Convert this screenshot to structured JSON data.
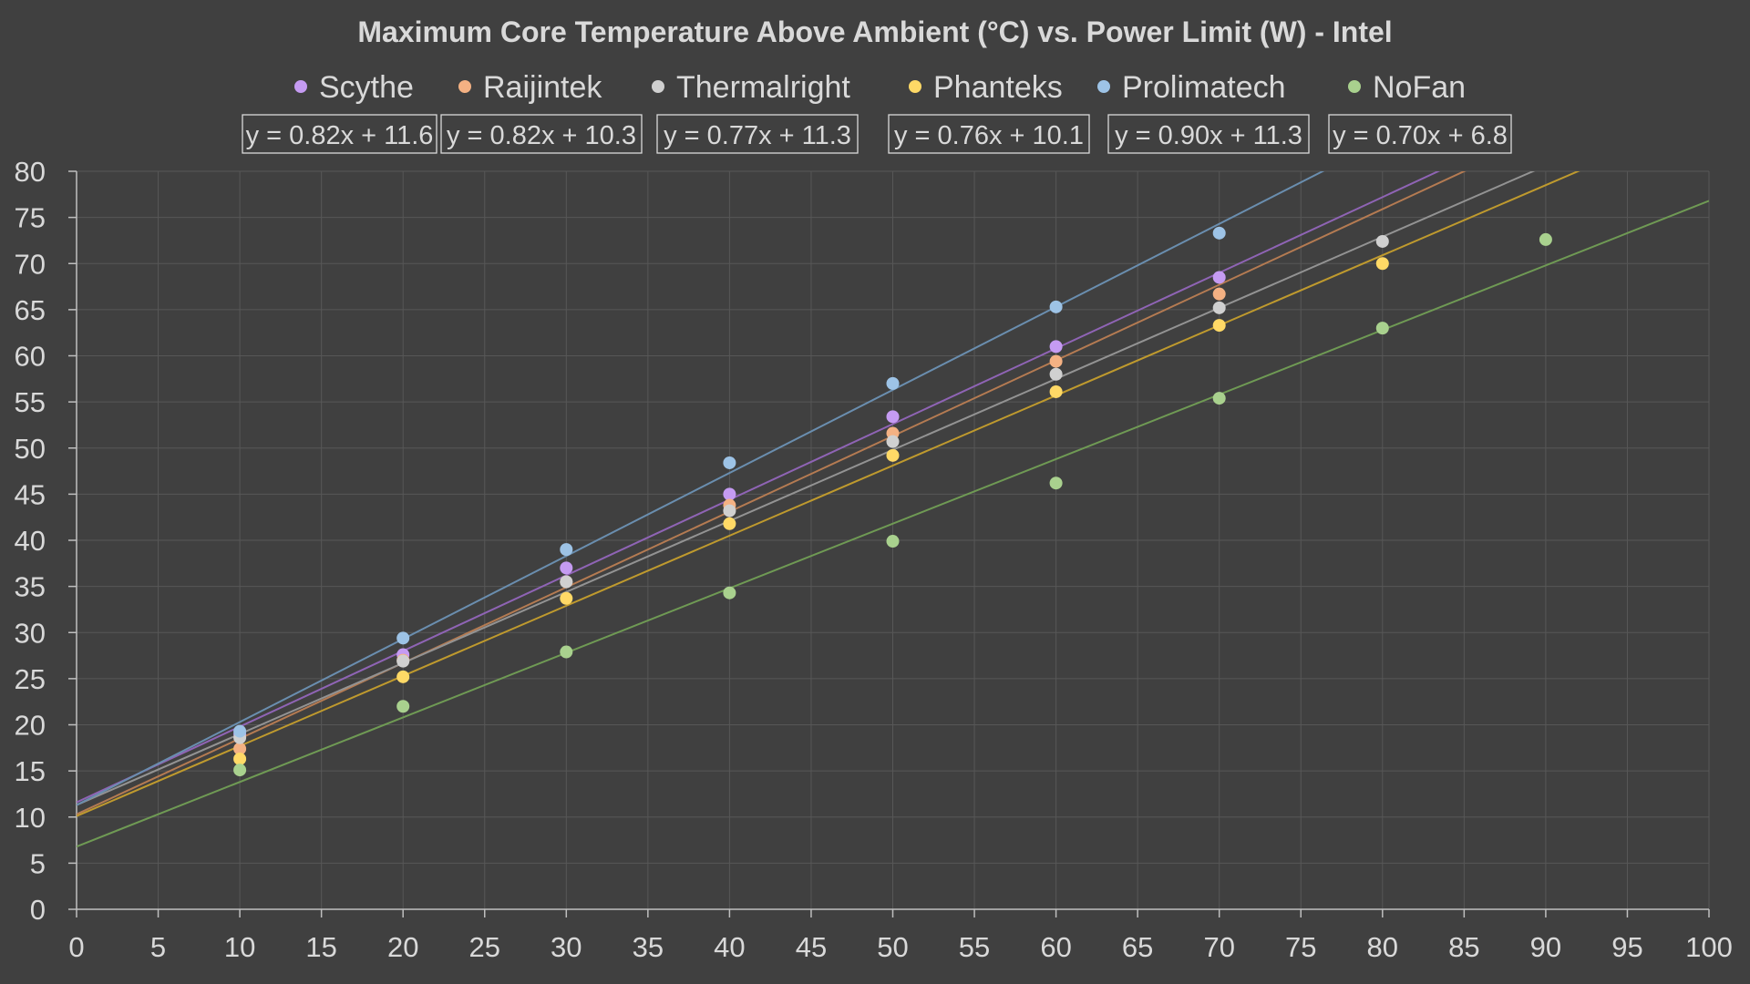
{
  "chart_data": {
    "type": "scatter",
    "title": "Maximum Core Temperature Above Ambient (°C) vs. Power Limit (W) - Intel",
    "xlabel": "",
    "ylabel": "",
    "xlim": [
      0,
      100
    ],
    "ylim": [
      0,
      80
    ],
    "x_ticks": [
      0,
      5,
      10,
      15,
      20,
      25,
      30,
      35,
      40,
      45,
      50,
      55,
      60,
      65,
      70,
      75,
      80,
      85,
      90,
      95,
      100
    ],
    "y_ticks": [
      0,
      5,
      10,
      15,
      20,
      25,
      30,
      35,
      40,
      45,
      50,
      55,
      60,
      65,
      70,
      75,
      80
    ],
    "grid": true,
    "legend_position": "top",
    "series": [
      {
        "name": "Scythe",
        "color": "#c59bf2",
        "trend_color": "#8f64b5",
        "x": [
          10,
          20,
          30,
          40,
          50,
          60,
          70
        ],
        "y": [
          19.0,
          27.6,
          37.0,
          45.0,
          53.4,
          61.0,
          68.5
        ],
        "trendline": {
          "slope": 0.82,
          "intercept": 11.6,
          "equation": "y = 0.82x + 11.6"
        }
      },
      {
        "name": "Raijintek",
        "color": "#f4b183",
        "trend_color": "#b57b52",
        "x": [
          10,
          20,
          30,
          40,
          50,
          60,
          70
        ],
        "y": [
          17.4,
          27.0,
          35.5,
          43.8,
          51.6,
          59.4,
          66.7
        ],
        "trendline": {
          "slope": 0.82,
          "intercept": 10.3,
          "equation": "y = 0.82x + 10.3"
        }
      },
      {
        "name": "Thermalright",
        "color": "#d0d0d0",
        "trend_color": "#939393",
        "x": [
          10,
          20,
          30,
          40,
          50,
          60,
          70,
          80
        ],
        "y": [
          18.6,
          26.9,
          35.5,
          43.2,
          50.7,
          58.0,
          65.2,
          72.4
        ],
        "trendline": {
          "slope": 0.77,
          "intercept": 11.3,
          "equation": "y = 0.77x + 11.3"
        }
      },
      {
        "name": "Phanteks",
        "color": "#ffd966",
        "trend_color": "#bf9a2e",
        "x": [
          10,
          20,
          30,
          40,
          50,
          60,
          70,
          80
        ],
        "y": [
          16.3,
          25.2,
          33.7,
          41.8,
          49.2,
          56.1,
          63.3,
          70.0
        ],
        "trendline": {
          "slope": 0.76,
          "intercept": 10.1,
          "equation": "y = 0.76x + 10.1"
        }
      },
      {
        "name": "Prolimatech",
        "color": "#9dc3e6",
        "trend_color": "#6a8eaf",
        "x": [
          10,
          20,
          30,
          40,
          50,
          60,
          70
        ],
        "y": [
          19.3,
          29.4,
          39.0,
          48.4,
          57.0,
          65.3,
          73.3
        ],
        "trendline": {
          "slope": 0.9,
          "intercept": 11.3,
          "equation": "y = 0.90x + 11.3"
        }
      },
      {
        "name": "NoFan",
        "color": "#a9d18e",
        "trend_color": "#6f9a54",
        "x": [
          10,
          20,
          30,
          40,
          50,
          60,
          70,
          80,
          90
        ],
        "y": [
          15.1,
          22.0,
          27.9,
          34.3,
          39.9,
          46.2,
          55.4,
          63.0,
          72.6
        ],
        "trendline": {
          "slope": 0.7,
          "intercept": 6.8,
          "equation": "y = 0.70x + 6.8"
        }
      }
    ]
  }
}
